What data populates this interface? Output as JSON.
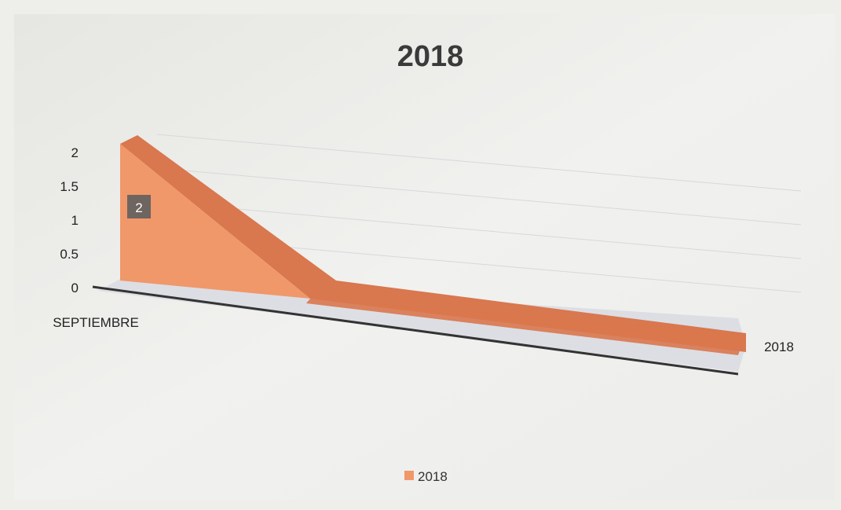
{
  "chart_data": {
    "type": "area",
    "title": "2018",
    "categories": [
      "SEPTIEMBRE",
      ""
    ],
    "series": [
      {
        "name": "2018",
        "values": [
          2,
          0
        ],
        "color": "#f0986a"
      }
    ],
    "data_labels": [
      "2",
      ""
    ],
    "y_ticks": [
      "0",
      "0.5",
      "1",
      "1.5",
      "2"
    ],
    "ylim": [
      0,
      2
    ],
    "depth_axis_label": "2018",
    "legend": {
      "position": "bottom",
      "entries": [
        "2018"
      ]
    },
    "grid": true,
    "three_d": true,
    "colors": {
      "front": "#f0986a",
      "top": "#d9774e",
      "floor": "#d6d8e0",
      "axis": "#333333",
      "label_bg": "#6e6460"
    }
  }
}
